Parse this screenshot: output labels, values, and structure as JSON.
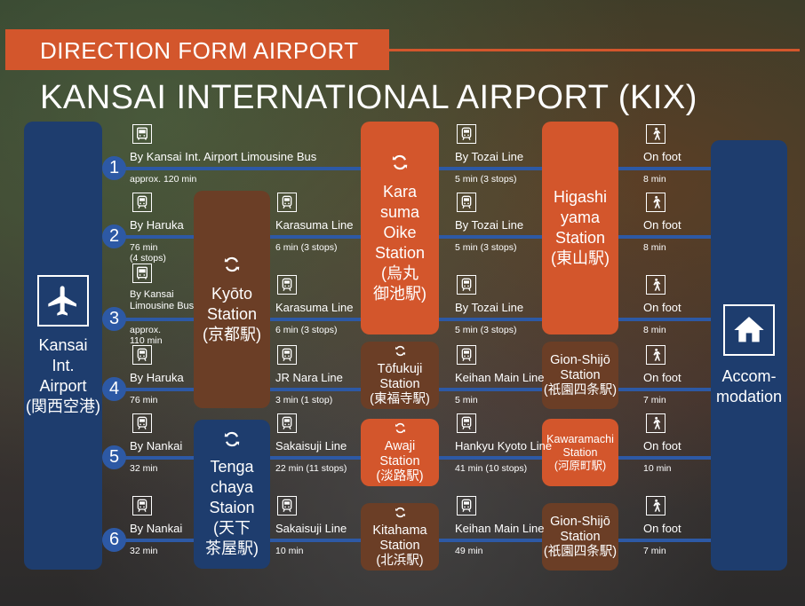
{
  "header": {
    "subtitle": "DIRECTION FORM AIRPORT",
    "title": "KANSAI INTERNATIONAL AIRPORT (KIX)"
  },
  "airport": {
    "name": "Kansai\nInt.\nAirport\n(関西空港)",
    "icon": "airplane-icon"
  },
  "accommodation": {
    "name": "Accom-\nmodation",
    "icon": "house-icon"
  },
  "routes": [
    {
      "num": "1",
      "seg1_label": "By Kansai Int. Airport Limousine Bus",
      "seg1_time": "approx. 120 min",
      "seg3_label": "By Tozai Line",
      "seg3_time": "5 min (3 stops)",
      "seg4_label": "On foot",
      "seg4_time": "8 min"
    },
    {
      "num": "2",
      "seg1_label": "By Haruka",
      "seg1_time": "76 min\n(4 stops)",
      "seg2_label": "Karasuma Line",
      "seg2_time": "6 min (3 stops)",
      "seg3_label": "By Tozai Line",
      "seg3_time": "5 min (3 stops)",
      "seg4_label": "On foot",
      "seg4_time": "8 min"
    },
    {
      "num": "3",
      "seg1_label": "By Kansai\nLimousine Bus",
      "seg1_time": "approx.\n110 min",
      "seg2_label": "Karasuma Line",
      "seg2_time": "6 min (3 stops)",
      "seg3_label": "By Tozai Line",
      "seg3_time": "5 min (3 stops)",
      "seg4_label": "On foot",
      "seg4_time": "8 min"
    },
    {
      "num": "4",
      "seg1_label": "By Haruka",
      "seg1_time": "76 min",
      "seg2_label": "JR Nara Line",
      "seg2_time": "3 min (1 stop)",
      "seg3_label": "Keihan Main Line",
      "seg3_time": "5 min",
      "seg4_label": "On foot",
      "seg4_time": "7 min"
    },
    {
      "num": "5",
      "seg1_label": "By Nankai",
      "seg1_time": "32 min",
      "seg2_label": "Sakaisuji Line",
      "seg2_time": "22 min (11 stops)",
      "seg3_label": "Hankyu Kyoto Line",
      "seg3_time": "41 min (10 stops)",
      "seg4_label": "On foot",
      "seg4_time": "10 min"
    },
    {
      "num": "6",
      "seg1_label": "By Nankai",
      "seg1_time": "32 min",
      "seg2_label": "Sakaisuji Line",
      "seg2_time": "10 min",
      "seg3_label": "Keihan Main Line",
      "seg3_time": "49 min",
      "seg4_label": "On foot",
      "seg4_time": "7 min"
    }
  ],
  "stations": {
    "kyoto": "Kyōto\nStation\n(京都駅)",
    "tengachaya": "Tenga\nchaya\nStaion\n(天下\n茶屋駅)",
    "karasuma": "Kara\nsuma\nOike\nStation\n(烏丸\n御池駅)",
    "tofukuji": "Tōfukuji\nStation\n(東福寺駅)",
    "awaji": "Awaji\nStation\n(淡路駅)",
    "kitahama": "Kitahama\nStation\n(北浜駅)",
    "higashiyama": "Higashi\nyama\nStation\n(東山駅)",
    "gion1": "Gion-Shijō\nStation\n(祇園四条駅)",
    "kawaramachi": "Kawaramachi\nStation\n(河原町駅)",
    "gion2": "Gion-Shijō\nStation\n(祇園四条駅)"
  },
  "icons": {
    "transfer": "transfer-icon",
    "train": "train-icon",
    "bus": "bus-icon",
    "walk": "walking-person-icon"
  },
  "colors": {
    "orange": "#d3562c",
    "navy": "#1e3d6e",
    "brown": "#6b3e26",
    "line_blue": "#2d59a5"
  }
}
